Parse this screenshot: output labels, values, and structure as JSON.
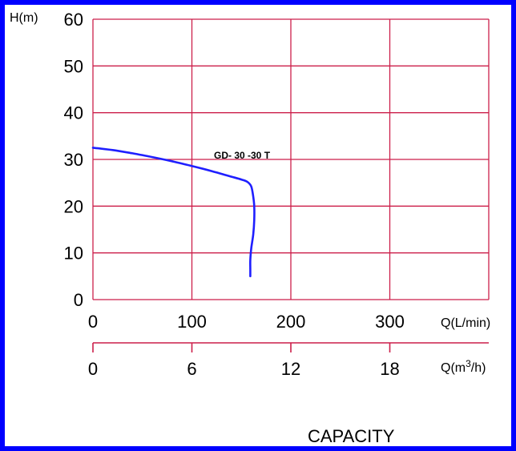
{
  "chart_data": {
    "type": "line",
    "y_axis": {
      "label": "H(m)",
      "ticks": [
        0,
        10,
        20,
        30,
        40,
        50,
        60
      ],
      "ylim": [
        0,
        60
      ]
    },
    "x_axis": {
      "label": "Q(L/min)",
      "ticks": [
        0,
        100,
        200,
        300
      ],
      "xlim": [
        0,
        400
      ]
    },
    "x_axis_secondary": {
      "label_prefix": "Q(m",
      "label_sup": "3",
      "label_suffix": "/h)",
      "ticks": [
        0,
        6,
        12,
        18
      ],
      "xlim": [
        0,
        24
      ]
    },
    "grid": true,
    "caption": "CAPACITY",
    "series": [
      {
        "name": "GD- 30 -30 T",
        "color": "#1f1fff",
        "x": [
          0,
          20,
          40,
          60,
          80,
          100,
          120,
          140,
          150,
          156,
          160,
          162,
          163,
          163,
          162,
          160,
          159,
          159,
          159
        ],
        "y": [
          32.5,
          32.0,
          31.3,
          30.5,
          29.6,
          28.6,
          27.5,
          26.3,
          25.7,
          25.2,
          24.2,
          22.0,
          20.0,
          17.0,
          14.0,
          11.0,
          8.5,
          6.5,
          5.0
        ]
      }
    ],
    "colors": {
      "grid": "#cc1f4a",
      "frame": "#0000ff",
      "curve": "#1f1fff"
    }
  }
}
